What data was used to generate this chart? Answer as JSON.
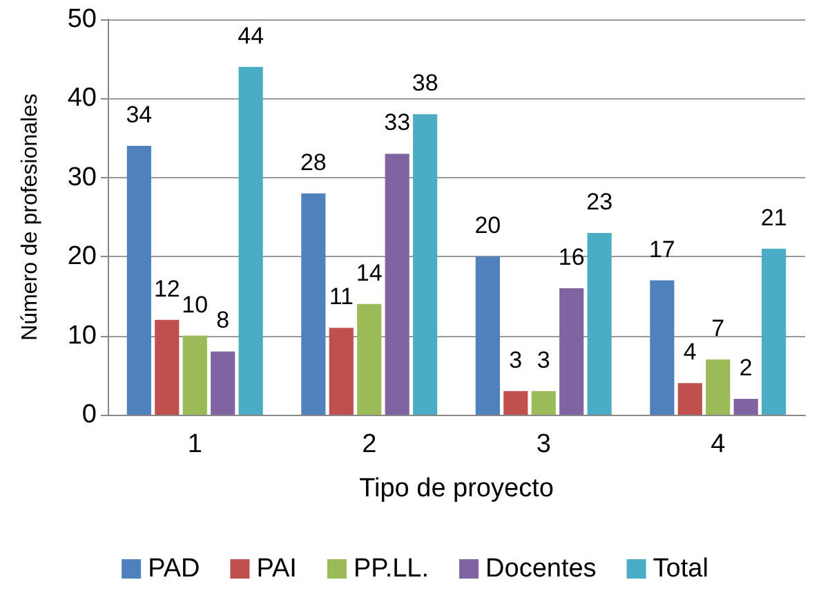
{
  "chart_data": {
    "type": "bar",
    "xlabel": "Tipo de proyecto",
    "ylabel": "Número de profesionales",
    "categories": [
      "1",
      "2",
      "3",
      "4"
    ],
    "series": [
      {
        "name": "PAD",
        "color": "#4f81bd",
        "values": [
          34,
          28,
          20,
          17
        ]
      },
      {
        "name": "PAI",
        "color": "#c0504d",
        "values": [
          12,
          11,
          3,
          4
        ]
      },
      {
        "name": "PP.LL.",
        "color": "#9bbb59",
        "values": [
          10,
          14,
          3,
          7
        ]
      },
      {
        "name": "Docentes",
        "color": "#8064a2",
        "values": [
          8,
          33,
          16,
          2
        ]
      },
      {
        "name": "Total",
        "color": "#4bacc6",
        "values": [
          44,
          38,
          23,
          21
        ]
      }
    ],
    "ylim": [
      0,
      50
    ],
    "yticks": [
      0,
      10,
      20,
      30,
      40,
      50
    ],
    "grid": "y",
    "legend": "bottom",
    "data_labels": true
  }
}
